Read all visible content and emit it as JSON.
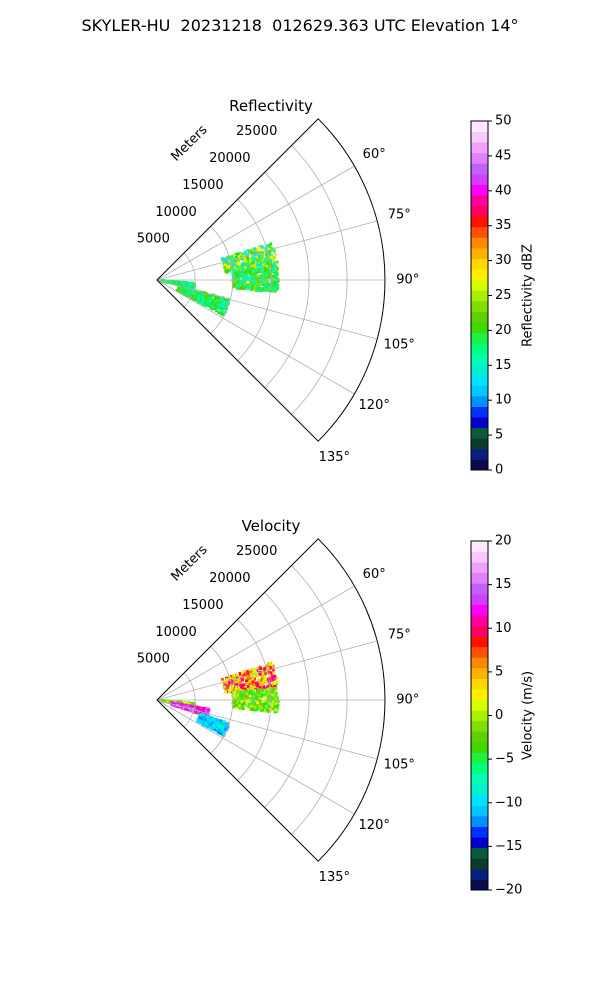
{
  "suptitle": "SKYLER-HU  20231218  012629.363 UTC Elevation 14°",
  "chart_data": [
    {
      "type": "polar-sector",
      "title": "Reflectivity",
      "radial_axis_label": "Meters",
      "radial_ticks": [
        5000,
        10000,
        15000,
        20000,
        25000
      ],
      "radial_range": [
        0,
        30000
      ],
      "azimuth_range_deg": [
        45,
        135
      ],
      "azimuth_ticks": [
        60,
        75,
        90,
        105,
        120,
        135
      ],
      "azimuth_tick_labels": [
        "60°",
        "75°",
        "90°",
        "105°",
        "120°",
        "135°"
      ],
      "grid": true,
      "colorbar": {
        "label": "Reflectivity dBZ",
        "range": [
          0,
          50
        ],
        "ticks": [
          0,
          5,
          10,
          15,
          20,
          25,
          30,
          35,
          40,
          45,
          50
        ],
        "palette": [
          "#0a0a50",
          "#0a1e80",
          "#0d3b2a",
          "#0a5a3a",
          "#0000c8",
          "#0030ff",
          "#0090ff",
          "#00c8ff",
          "#00e0ff",
          "#00f0d0",
          "#00ffb0",
          "#00ff80",
          "#20f040",
          "#40d800",
          "#60d000",
          "#80e000",
          "#a8f000",
          "#d8ff00",
          "#fff000",
          "#ffd800",
          "#ffb000",
          "#ff8800",
          "#ff5000",
          "#ff1000",
          "#ff0060",
          "#ff00a0",
          "#ff00ff",
          "#d040ff",
          "#c060ff",
          "#e080ff",
          "#f0a0ff",
          "#f8c8ff",
          "#ffe8ff"
        ]
      },
      "echoes": [
        {
          "azimuth_deg": [
            72,
            84
          ],
          "range_m": [
            9000,
            16000
          ],
          "value_range": [
            12,
            30
          ]
        },
        {
          "azimuth_deg": [
            84,
            96
          ],
          "range_m": [
            10000,
            16000
          ],
          "value_range": [
            14,
            24
          ]
        },
        {
          "azimuth_deg": [
            95,
            103
          ],
          "range_m": [
            500,
            5000
          ],
          "value_range": [
            14,
            22
          ]
        },
        {
          "azimuth_deg": [
            105,
            118
          ],
          "range_m": [
            3000,
            10000
          ],
          "value_range": [
            14,
            22
          ]
        }
      ]
    },
    {
      "type": "polar-sector",
      "title": "Velocity",
      "radial_axis_label": "Meters",
      "radial_ticks": [
        5000,
        10000,
        15000,
        20000,
        25000
      ],
      "radial_range": [
        0,
        30000
      ],
      "azimuth_range_deg": [
        45,
        135
      ],
      "azimuth_ticks": [
        60,
        75,
        90,
        105,
        120,
        135
      ],
      "azimuth_tick_labels": [
        "60°",
        "75°",
        "90°",
        "105°",
        "120°",
        "135°"
      ],
      "grid": true,
      "colorbar": {
        "label": "Velocity (m/s)",
        "range": [
          -20,
          20
        ],
        "ticks": [
          -20,
          -15,
          -10,
          -5,
          0,
          5,
          10,
          15,
          20
        ],
        "palette": [
          "#0a0a50",
          "#0a1e80",
          "#0d3b2a",
          "#0a5a3a",
          "#0000c8",
          "#0030ff",
          "#0090ff",
          "#00c8ff",
          "#00e0ff",
          "#00f0d0",
          "#00ffb0",
          "#00ff80",
          "#20f040",
          "#40d800",
          "#60d000",
          "#80e000",
          "#a8f000",
          "#d8ff00",
          "#fff000",
          "#ffd800",
          "#ffb000",
          "#ff8800",
          "#ff5000",
          "#ff1000",
          "#ff0060",
          "#ff00a0",
          "#ff00ff",
          "#d040ff",
          "#c060ff",
          "#e080ff",
          "#f0a0ff",
          "#f8c8ff",
          "#ffe8ff"
        ]
      },
      "echoes": [
        {
          "azimuth_deg": [
            72,
            84
          ],
          "range_m": [
            9000,
            16000
          ],
          "value_range": [
            0,
            12
          ]
        },
        {
          "azimuth_deg": [
            84,
            96
          ],
          "range_m": [
            10000,
            16000
          ],
          "value_range": [
            -6,
            2
          ]
        },
        {
          "azimuth_deg": [
            95,
            102
          ],
          "range_m": [
            500,
            5000
          ],
          "value_range": [
            -4,
            2
          ]
        },
        {
          "azimuth_deg": [
            100,
            108
          ],
          "range_m": [
            2000,
            7000
          ],
          "value_range": [
            10,
            16
          ]
        },
        {
          "azimuth_deg": [
            108,
            118
          ],
          "range_m": [
            6000,
            10000
          ],
          "value_range": [
            -12,
            -8
          ]
        }
      ]
    }
  ]
}
